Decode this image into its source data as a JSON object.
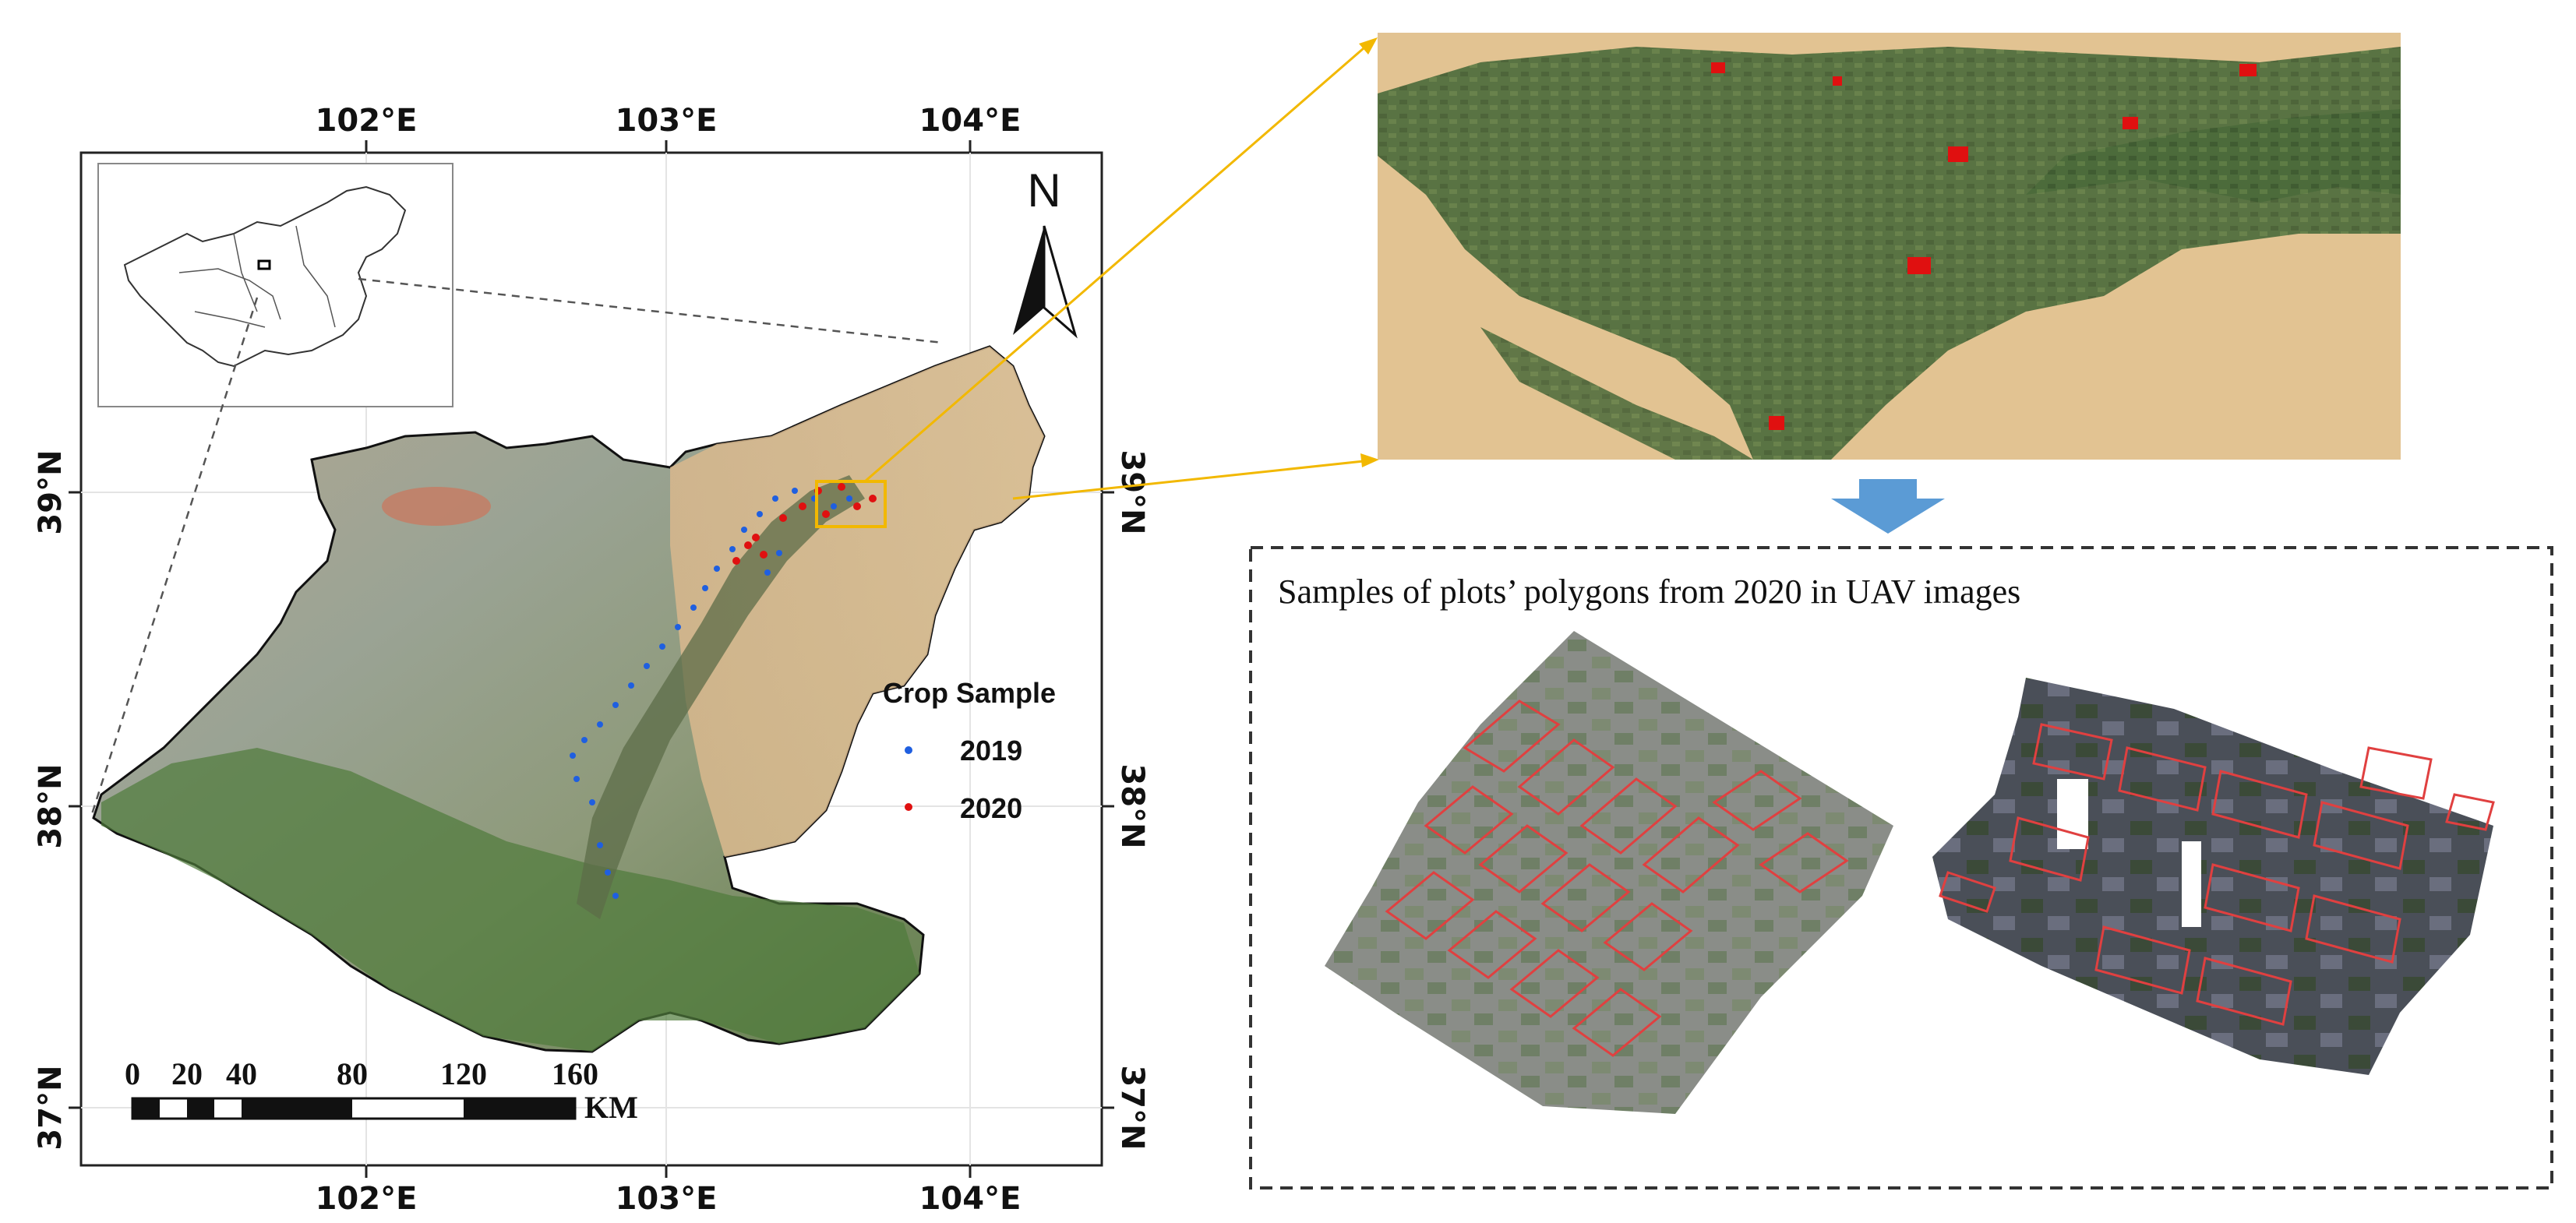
{
  "map": {
    "lon_ticks": [
      "102°E",
      "103°E",
      "104°E"
    ],
    "lat_ticks": [
      "39°N",
      "38°N",
      "37°N"
    ],
    "north_label": "N",
    "legend": {
      "title": "Crop Sample",
      "items": [
        {
          "label": "2019",
          "color": "#1f5fe0"
        },
        {
          "label": "2020",
          "color": "#e01010"
        }
      ]
    },
    "scale_bar": {
      "labels": [
        "0",
        "20",
        "40",
        "80",
        "120",
        "160"
      ],
      "unit": "KM"
    }
  },
  "uav_panel": {
    "caption": "Samples of plots’ polygons from 2020 in UAV images"
  },
  "colors": {
    "accent_arrow": "#f2b800",
    "down_arrow": "#5b9bd5",
    "polygon_outline": "#e04040",
    "sample_2019": "#1f5fe0",
    "sample_2020": "#e01010"
  }
}
